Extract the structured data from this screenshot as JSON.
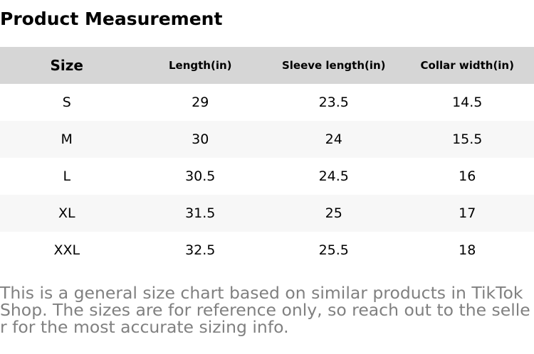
{
  "title": "Product Measurement",
  "table": {
    "header": [
      "Size",
      "Length(in)",
      "Sleeve length(in)",
      "Collar width(in)"
    ],
    "rows": [
      [
        "S",
        29,
        23.5,
        14.5
      ],
      [
        "M",
        30,
        24,
        15.5
      ],
      [
        "L",
        30.5,
        24.5,
        16
      ],
      [
        "XL",
        31.5,
        25,
        17
      ],
      [
        "XXL",
        32.5,
        25.5,
        18
      ]
    ]
  },
  "note": "This is a general size chart based on similar products in TikTok Shop. The sizes are for reference only, so reach out to the seller for the most accurate sizing info."
}
